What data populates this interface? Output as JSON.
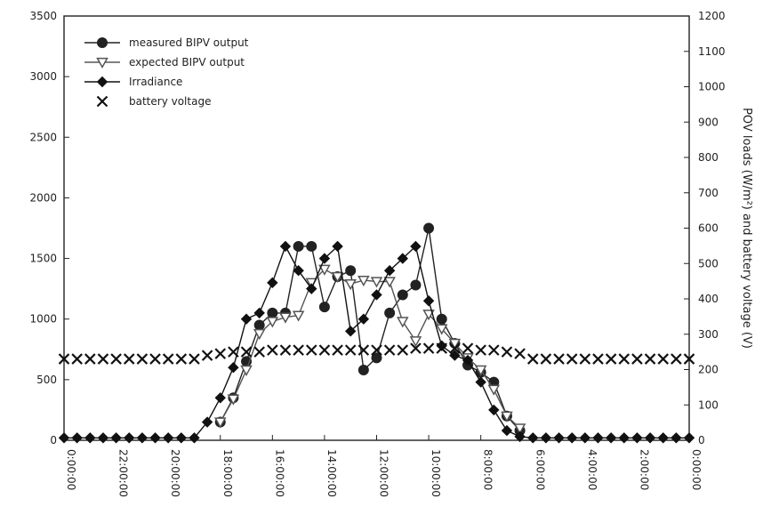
{
  "chart_data": {
    "type": "line",
    "title": "",
    "xlabel": "",
    "x_ticks": [
      "0:00:00",
      "2:00:00",
      "4:00:00",
      "6:00:00",
      "8:00:00",
      "10:00:00",
      "12:00:00",
      "14:00:00",
      "16:00:00",
      "18:00:00",
      "20:00:00",
      "22:00:00",
      "0:00:00"
    ],
    "x_hours": [
      0,
      2,
      4,
      6,
      8,
      10,
      12,
      14,
      16,
      18,
      20,
      22,
      24
    ],
    "xlim": [
      0,
      24
    ],
    "left_axis": {
      "ticks": [
        0,
        500,
        1000,
        1500,
        2000,
        2500,
        3000,
        3500
      ],
      "tick_labels": [
        "0",
        "500",
        "1000",
        "1500",
        "2000",
        "2500",
        "3000",
        "3500"
      ],
      "ylim": [
        0,
        3500
      ]
    },
    "right_axis": {
      "label": "POV loads (W/m²) and battery voltage (V)",
      "ticks": [
        0,
        100,
        200,
        300,
        400,
        500,
        600,
        700,
        800,
        900,
        1000,
        1100,
        1200
      ],
      "tick_labels": [
        "0",
        "100",
        "200",
        "300",
        "400",
        "500",
        "600",
        "700",
        "800",
        "900",
        "1000",
        "1100",
        "1200"
      ],
      "ylim": [
        0,
        1200
      ]
    },
    "mirrored": true,
    "legend_position": "top-left",
    "series": [
      {
        "name": "measured BIPV output",
        "marker": "circle",
        "color": "#222222",
        "x": [
          6.5,
          7,
          7.5,
          8,
          8.5,
          9,
          9.5,
          10,
          10.5,
          11,
          11.5,
          12,
          12.5,
          13,
          13.5,
          14,
          14.5,
          15,
          15.5,
          16,
          16.5,
          17,
          17.5,
          18
        ],
        "y": [
          80,
          200,
          480,
          560,
          620,
          800,
          1000,
          1750,
          1280,
          1200,
          1050,
          680,
          580,
          1400,
          1350,
          1100,
          1600,
          1600,
          1050,
          1050,
          950,
          650,
          350,
          150
        ]
      },
      {
        "name": "expected BIPV output",
        "marker": "triangle-down",
        "color": "#555555",
        "x": [
          6.5,
          7,
          7.5,
          8,
          8.5,
          9,
          9.5,
          10,
          10.5,
          11,
          11.5,
          12,
          12.5,
          13,
          13.5,
          14,
          14.5,
          15,
          15.5,
          16,
          16.5,
          17,
          17.5,
          18
        ],
        "y": [
          100,
          200,
          420,
          580,
          680,
          800,
          920,
          1040,
          820,
          980,
          1310,
          1310,
          1320,
          1290,
          1350,
          1410,
          1300,
          1030,
          1015,
          980,
          880,
          580,
          340,
          150
        ]
      },
      {
        "name": "Irradiance",
        "marker": "diamond",
        "color": "#111111",
        "x": [
          0,
          0.5,
          1,
          1.5,
          2,
          2.5,
          3,
          3.5,
          4,
          4.5,
          5,
          5.5,
          6,
          6.5,
          7,
          7.5,
          8,
          8.5,
          9,
          9.5,
          10,
          10.5,
          11,
          11.5,
          12,
          12.5,
          13,
          13.5,
          14,
          14.5,
          15,
          15.5,
          16,
          16.5,
          17,
          17.5,
          18,
          18.5,
          19,
          19.5,
          20,
          20.5,
          21,
          21.5,
          22,
          22.5,
          23,
          23.5,
          24
        ],
        "y": [
          20,
          20,
          20,
          20,
          20,
          20,
          20,
          20,
          20,
          20,
          20,
          20,
          20,
          30,
          80,
          250,
          480,
          660,
          700,
          780,
          1150,
          1600,
          1500,
          1400,
          1200,
          1000,
          900,
          1600,
          1500,
          1250,
          1400,
          1600,
          1300,
          1050,
          1000,
          600,
          350,
          150,
          20,
          20,
          20,
          20,
          20,
          20,
          20,
          20,
          20,
          20,
          20
        ]
      },
      {
        "name": "battery voltage",
        "marker": "x",
        "color": "#111111",
        "x": [
          0,
          0.5,
          1,
          1.5,
          2,
          2.5,
          3,
          3.5,
          4,
          4.5,
          5,
          5.5,
          6,
          6.5,
          7,
          7.5,
          8,
          8.5,
          9,
          9.5,
          10,
          10.5,
          11,
          11.5,
          12,
          12.5,
          13,
          13.5,
          14,
          14.5,
          15,
          15.5,
          16,
          16.5,
          17,
          17.5,
          18,
          18.5,
          19,
          19.5,
          20,
          20.5,
          21,
          21.5,
          22,
          22.5,
          23,
          23.5,
          24
        ],
        "y": [
          230,
          230,
          230,
          230,
          230,
          230,
          230,
          230,
          230,
          230,
          230,
          230,
          230,
          245,
          250,
          255,
          255,
          260,
          260,
          260,
          260,
          260,
          255,
          255,
          255,
          255,
          255,
          255,
          255,
          255,
          255,
          255,
          255,
          250,
          250,
          250,
          245,
          240,
          230,
          230,
          230,
          230,
          230,
          230,
          230,
          230,
          230,
          230,
          230
        ]
      }
    ]
  }
}
